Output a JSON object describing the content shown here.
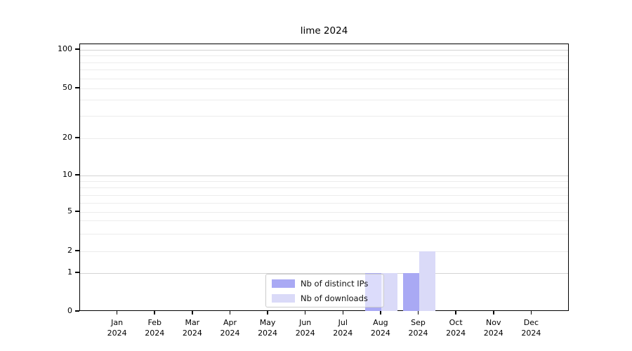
{
  "chart_data": {
    "type": "bar",
    "title": "lime 2024",
    "categories": [
      "Jan 2024",
      "Feb 2024",
      "Mar 2024",
      "Apr 2024",
      "May 2024",
      "Jun 2024",
      "Jul 2024",
      "Aug 2024",
      "Sep 2024",
      "Oct 2024",
      "Nov 2024",
      "Dec 2024"
    ],
    "series": [
      {
        "name": "Nb of distinct IPs",
        "color": "#a9a9f4",
        "values": [
          0,
          0,
          0,
          0,
          0,
          0,
          0,
          1,
          1,
          0,
          0,
          0
        ]
      },
      {
        "name": "Nb of downloads",
        "color": "#dadaf8",
        "values": [
          0,
          0,
          0,
          0,
          0,
          0,
          0,
          1,
          2,
          0,
          0,
          0
        ]
      }
    ],
    "yticks": [
      100,
      50,
      20,
      10,
      5,
      2,
      1,
      0
    ],
    "ylim": [
      0,
      110
    ],
    "yscale": "symlog",
    "xlabel": "",
    "ylabel": "",
    "grid": "horizontal, log major+minor",
    "legend_position": "lower center (inside plot)"
  },
  "colors": {
    "major_grid": "#d3d3d3",
    "minor_grid": "#ececec",
    "spine": "#000000",
    "background": "#ffffff"
  }
}
